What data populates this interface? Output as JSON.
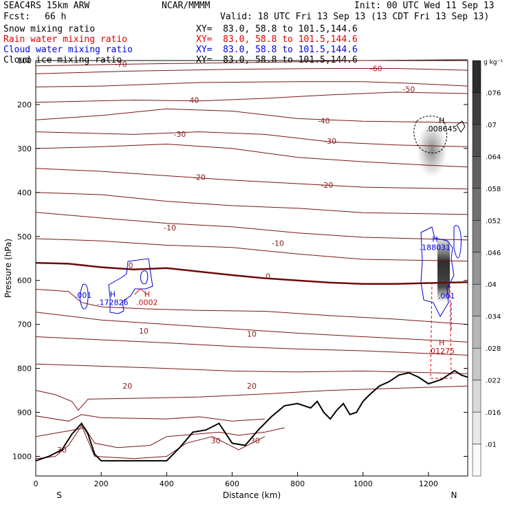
{
  "header": {
    "model": "SEAC4RS 15km ARW",
    "org": "NCAR/MMMM",
    "init": "Init: 00 UTC Wed 11 Sep 13",
    "fcst_label": "Fcst:",
    "fcst_value": "66 h",
    "valid": "Valid: 18 UTC Fri 13 Sep 13 (13 CDT Fri 13 Sep 13)",
    "fields": [
      {
        "name": "Snow mixing ratio",
        "xy": "XY=  83.0, 58.8 to 101.5,144.6",
        "color": "#000000"
      },
      {
        "name": "Rain water mixing ratio",
        "xy": "XY=  83.0, 58.8 to 101.5,144.6",
        "color": "#e00000"
      },
      {
        "name": "Cloud water mixing ratio",
        "xy": "XY=  83.0, 58.8 to 101.5,144.6",
        "color": "#0000e0"
      },
      {
        "name": "Cloud ice mixing ratio",
        "xy": "XY=  83.0, 58.8 to 101.5,144.6",
        "color": "#000000"
      }
    ]
  },
  "chart_data": {
    "type": "cross-section",
    "xlabel": "Distance (km)",
    "ylabel": "Pressure (hPa)",
    "xlim": [
      0,
      1320
    ],
    "ylim": [
      1050,
      100
    ],
    "xticks": [
      "0",
      "200",
      "400",
      "600",
      "800",
      "1000",
      "1200"
    ],
    "yticks": [
      "100",
      "200",
      "300",
      "400",
      "500",
      "600",
      "700",
      "800",
      "900",
      "1000"
    ],
    "direction_left": "S",
    "direction_right": "N",
    "colorbar": {
      "unit": "g kg⁻¹",
      "labels": [
        ".01",
        ".016",
        ".022",
        ".028",
        ".034",
        ".04",
        ".046",
        ".052",
        ".058",
        ".064",
        ".07",
        ".076"
      ]
    },
    "temperature_contours": [
      {
        "label": "-70",
        "x": 260,
        "y": 108
      },
      {
        "label": "-60",
        "x": 1040,
        "y": 118
      },
      {
        "label": "-50",
        "x": 1140,
        "y": 165
      },
      {
        "label": "-40",
        "x": 480,
        "y": 190
      },
      {
        "label": "-40",
        "x": 880,
        "y": 237
      },
      {
        "label": "-30",
        "x": 440,
        "y": 267
      },
      {
        "label": "-30",
        "x": 900,
        "y": 283
      },
      {
        "label": "-20",
        "x": 500,
        "y": 365
      },
      {
        "label": "-20",
        "x": 890,
        "y": 383
      },
      {
        "label": "-10",
        "x": 410,
        "y": 480
      },
      {
        "label": "-10",
        "x": 740,
        "y": 515
      },
      {
        "label": "0",
        "x": 290,
        "y": 565
      },
      {
        "label": "0",
        "x": 710,
        "y": 590
      },
      {
        "label": "10",
        "x": 330,
        "y": 715
      },
      {
        "label": "10",
        "x": 660,
        "y": 722
      },
      {
        "label": "20",
        "x": 280,
        "y": 840
      },
      {
        "label": "20",
        "x": 660,
        "y": 840
      },
      {
        "label": "30",
        "x": 80,
        "y": 985
      },
      {
        "label": "30",
        "x": 550,
        "y": 964
      },
      {
        "label": "30",
        "x": 670,
        "y": 964
      }
    ],
    "maxima_labels": [
      {
        "symbol": "H",
        "value": ".008645",
        "x": 1240,
        "y": 255,
        "color": "#000000"
      },
      {
        "symbol": "H",
        "value": ".188031",
        "x": 1220,
        "y": 525,
        "color": "#0000e0"
      },
      {
        "symbol": "H",
        "value": ".172826",
        "x": 235,
        "y": 650,
        "color": "#0000e0"
      },
      {
        "symbol": "H",
        "value": ".0002",
        "x": 340,
        "y": 650,
        "color": "#c01010"
      },
      {
        "symbol": "",
        "value": ".001",
        "x": 145,
        "y": 633,
        "color": "#0000e0"
      },
      {
        "symbol": "",
        "value": ".001",
        "x": 1255,
        "y": 635,
        "color": "#0000e0"
      },
      {
        "symbol": "H",
        "value": ".01275",
        "x": 1240,
        "y": 760,
        "color": "#c01010"
      }
    ],
    "terrain": [
      [
        0,
        1010
      ],
      [
        40,
        1000
      ],
      [
        80,
        985
      ],
      [
        110,
        950
      ],
      [
        140,
        925
      ],
      [
        160,
        950
      ],
      [
        180,
        995
      ],
      [
        200,
        1010
      ],
      [
        300,
        1010
      ],
      [
        400,
        1010
      ],
      [
        440,
        980
      ],
      [
        480,
        945
      ],
      [
        520,
        940
      ],
      [
        560,
        925
      ],
      [
        600,
        970
      ],
      [
        640,
        975
      ],
      [
        680,
        940
      ],
      [
        720,
        910
      ],
      [
        760,
        885
      ],
      [
        800,
        880
      ],
      [
        840,
        890
      ],
      [
        860,
        875
      ],
      [
        880,
        900
      ],
      [
        900,
        915
      ],
      [
        920,
        895
      ],
      [
        940,
        880
      ],
      [
        960,
        905
      ],
      [
        980,
        900
      ],
      [
        1000,
        875
      ],
      [
        1020,
        860
      ],
      [
        1050,
        840
      ],
      [
        1080,
        830
      ],
      [
        1110,
        815
      ],
      [
        1140,
        810
      ],
      [
        1170,
        820
      ],
      [
        1200,
        835
      ],
      [
        1220,
        830
      ],
      [
        1240,
        825
      ],
      [
        1260,
        815
      ],
      [
        1280,
        805
      ],
      [
        1300,
        815
      ],
      [
        1320,
        820
      ]
    ]
  }
}
